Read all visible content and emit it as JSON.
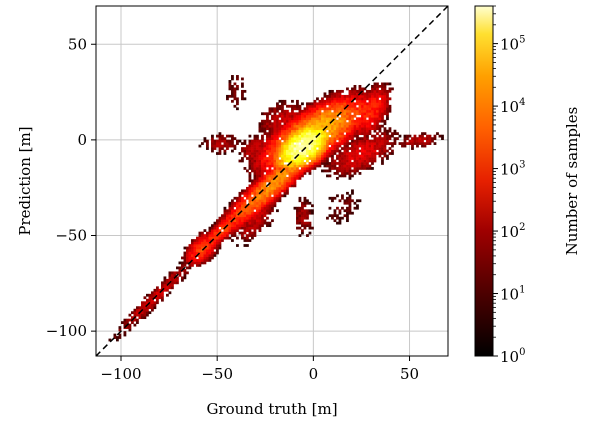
{
  "chart_data": {
    "type": "heatmap",
    "title": "",
    "xlabel": "Ground truth [m]",
    "ylabel": "Prediction [m]",
    "xlim": [
      -113,
      70
    ],
    "ylim": [
      -113,
      70
    ],
    "x_ticks": [
      -100,
      -50,
      0,
      50
    ],
    "y_ticks": [
      -100,
      -50,
      0,
      50
    ],
    "x_tick_labels": [
      "−100",
      "−50",
      "0",
      "50"
    ],
    "y_tick_labels": [
      "−100",
      "−50",
      "0",
      "50"
    ],
    "grid": true,
    "identity_line": {
      "style": "dashed",
      "color": "#000000",
      "from": [
        -113,
        -113
      ],
      "to": [
        70,
        70
      ]
    },
    "colorbar": {
      "label": "Number of samples",
      "scale": "log",
      "range": [
        1,
        400000
      ],
      "colormap": "hot",
      "tick_exponents": [
        0,
        1,
        2,
        3,
        4,
        5
      ],
      "tick_base": "10"
    },
    "density_regions": [
      {
        "cx": -5,
        "cy": -3,
        "sx": 7,
        "sy": 6,
        "rho": 0.5,
        "peak": 5.3
      },
      {
        "cx": 0,
        "cy": 3,
        "sx": 14,
        "sy": 10,
        "rho": 0.7,
        "peak": 3.8
      },
      {
        "cx": -20,
        "cy": -22,
        "sx": 16,
        "sy": 15,
        "rho": 0.94,
        "peak": 3.3
      },
      {
        "cx": -45,
        "cy": -45,
        "sx": 12,
        "sy": 11,
        "rho": 0.95,
        "peak": 2.6
      },
      {
        "cx": -58,
        "cy": -57,
        "sx": 5,
        "sy": 5,
        "rho": 0.5,
        "peak": 2.6
      },
      {
        "cx": -82,
        "cy": -82,
        "sx": 15,
        "sy": 15,
        "rho": 0.97,
        "peak": 1.5
      },
      {
        "cx": 20,
        "cy": 12,
        "sx": 9,
        "sy": 7,
        "rho": 0.6,
        "peak": 2.6
      },
      {
        "cx": 30,
        "cy": 15,
        "sx": 6,
        "sy": 8,
        "rho": 0.5,
        "peak": 2.3
      },
      {
        "cx": 25,
        "cy": -7,
        "sx": 12,
        "sy": 8,
        "rho": 0.6,
        "peak": 1.7
      },
      {
        "cx": 55,
        "cy": 0,
        "sx": 8,
        "sy": 3,
        "rho": 0.3,
        "peak": 1.3
      },
      {
        "cx": -15,
        "cy": 10,
        "sx": 10,
        "sy": 7,
        "rho": 0.2,
        "peak": 1.4
      },
      {
        "cx": -48,
        "cy": -2,
        "sx": 8,
        "sy": 4,
        "rho": 0.0,
        "peak": 1.1
      },
      {
        "cx": -30,
        "cy": -5,
        "sx": 6,
        "sy": 6,
        "rho": 0.3,
        "peak": 1.4
      },
      {
        "cx": -40,
        "cy": 25,
        "sx": 5,
        "sy": 10,
        "rho": 0.0,
        "peak": 0.6
      },
      {
        "cx": 15,
        "cy": -35,
        "sx": 10,
        "sy": 10,
        "rho": 0.2,
        "peak": 0.5
      },
      {
        "cx": -5,
        "cy": -40,
        "sx": 4,
        "sy": 8,
        "rho": 0.0,
        "peak": 1.0
      },
      {
        "cx": -30,
        "cy": -40,
        "sx": 8,
        "sy": 10,
        "rho": 0.6,
        "peak": 1.4
      }
    ]
  }
}
